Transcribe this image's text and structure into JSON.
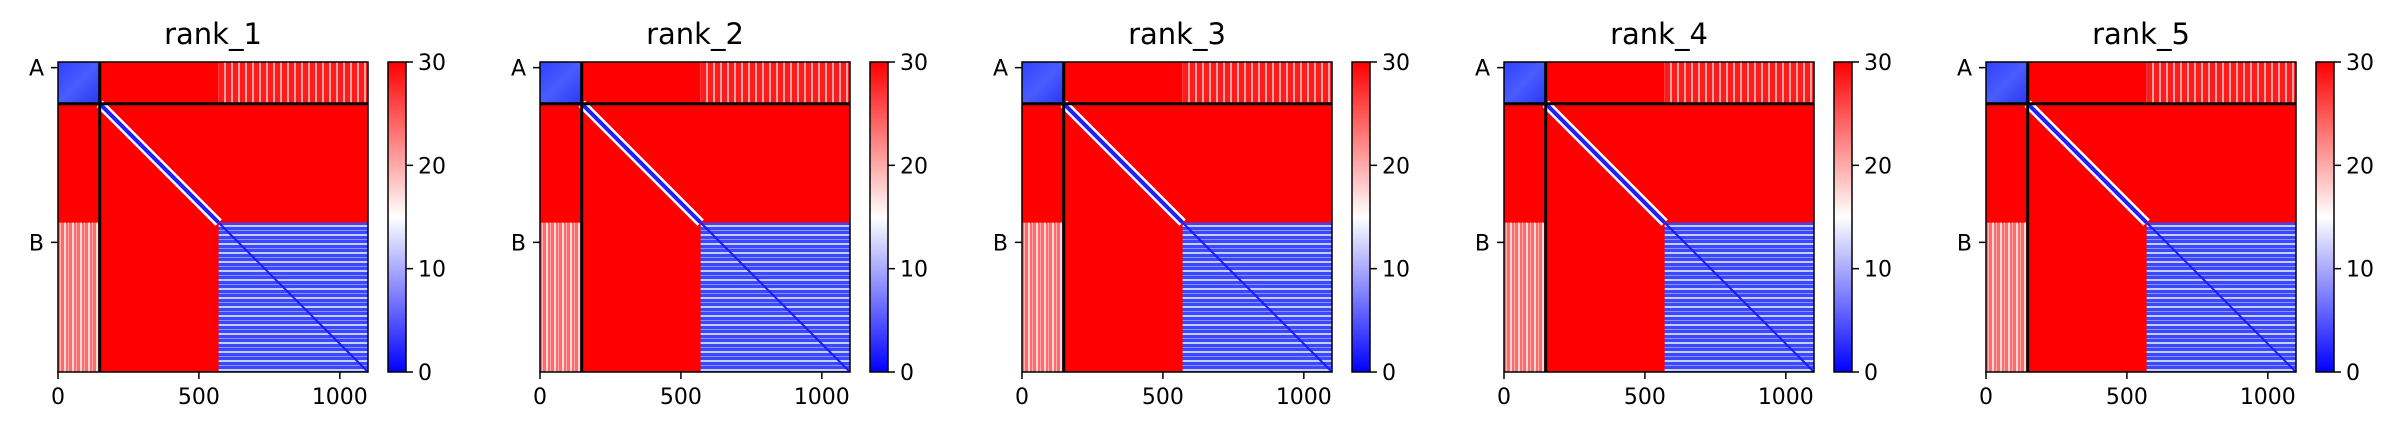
{
  "chart_data": [
    {
      "type": "heatmap",
      "title": "rank_1",
      "x_ticks": [
        0,
        500,
        1000
      ],
      "x_range": [
        0,
        1100
      ],
      "y_range": [
        0,
        1100
      ],
      "chain_labels": [
        "A",
        "B"
      ],
      "chain_boundaries": [
        148
      ],
      "chain_label_positions": [
        20,
        640
      ],
      "colorbar": {
        "ticks": [
          0,
          10,
          20,
          30
        ],
        "range": [
          0,
          30
        ],
        "colors": [
          "#0000ff",
          "#ffffff",
          "#ff0000"
        ]
      }
    },
    {
      "type": "heatmap",
      "title": "rank_2",
      "x_ticks": [
        0,
        500,
        1000
      ],
      "x_range": [
        0,
        1100
      ],
      "y_range": [
        0,
        1100
      ],
      "chain_labels": [
        "A",
        "B"
      ],
      "chain_boundaries": [
        148
      ],
      "chain_label_positions": [
        20,
        640
      ],
      "colorbar": {
        "ticks": [
          0,
          10,
          20,
          30
        ],
        "range": [
          0,
          30
        ],
        "colors": [
          "#0000ff",
          "#ffffff",
          "#ff0000"
        ]
      }
    },
    {
      "type": "heatmap",
      "title": "rank_3",
      "x_ticks": [
        0,
        500,
        1000
      ],
      "x_range": [
        0,
        1100
      ],
      "y_range": [
        0,
        1100
      ],
      "chain_labels": [
        "A",
        "B"
      ],
      "chain_boundaries": [
        148
      ],
      "chain_label_positions": [
        20,
        640
      ],
      "colorbar": {
        "ticks": [
          0,
          10,
          20,
          30
        ],
        "range": [
          0,
          30
        ],
        "colors": [
          "#0000ff",
          "#ffffff",
          "#ff0000"
        ]
      }
    },
    {
      "type": "heatmap",
      "title": "rank_4",
      "x_ticks": [
        0,
        500,
        1000
      ],
      "x_range": [
        0,
        1100
      ],
      "y_range": [
        0,
        1100
      ],
      "chain_labels": [
        "A",
        "B"
      ],
      "chain_boundaries": [
        148
      ],
      "chain_label_positions": [
        20,
        640
      ],
      "colorbar": {
        "ticks": [
          0,
          10,
          20,
          30
        ],
        "range": [
          0,
          30
        ],
        "colors": [
          "#0000ff",
          "#ffffff",
          "#ff0000"
        ]
      }
    },
    {
      "type": "heatmap",
      "title": "rank_5",
      "x_ticks": [
        0,
        500,
        1000
      ],
      "x_range": [
        0,
        1100
      ],
      "y_range": [
        0,
        1100
      ],
      "chain_labels": [
        "A",
        "B"
      ],
      "chain_boundaries": [
        148
      ],
      "chain_label_positions": [
        20,
        640
      ],
      "colorbar": {
        "ticks": [
          0,
          10,
          20,
          30
        ],
        "range": [
          0,
          30
        ],
        "colors": [
          "#0000ff",
          "#ffffff",
          "#ff0000"
        ]
      }
    }
  ]
}
